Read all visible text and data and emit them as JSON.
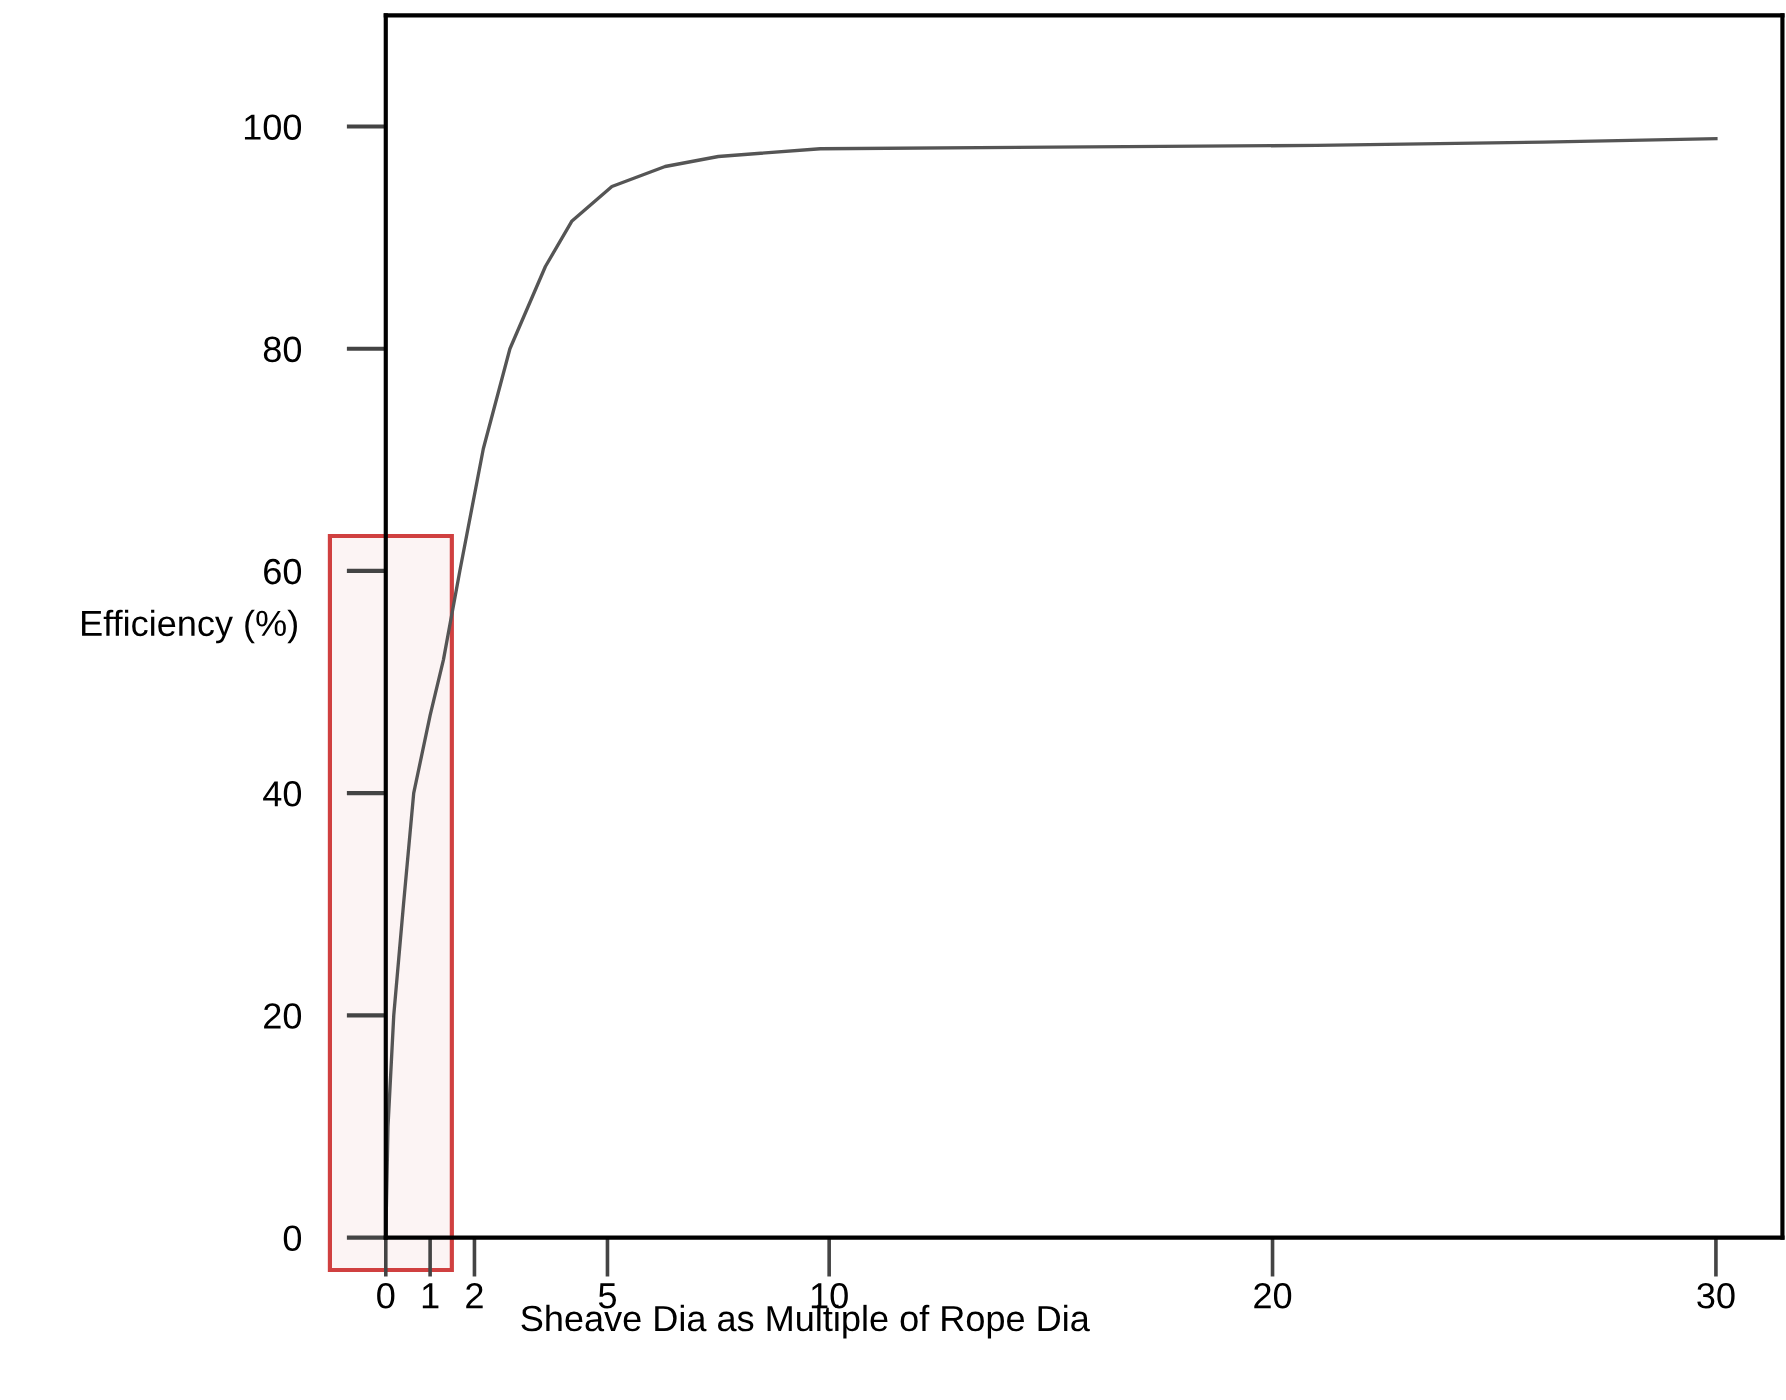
{
  "chart_data": {
    "type": "line",
    "xlabel": "Sheave Dia as Multiple of Rope Dia",
    "ylabel": "Efficiency (%)",
    "xlim": [
      0,
      31.5
    ],
    "ylim": [
      0,
      110
    ],
    "xticks": [
      0,
      1,
      2,
      5,
      10,
      20,
      30
    ],
    "yticks": [
      0,
      20,
      40,
      60,
      80,
      100
    ],
    "series": [
      {
        "color": "#555555",
        "x": [
          0,
          0.05,
          0.18,
          0.4,
          0.63,
          1.0,
          1.3,
          1.67,
          2.2,
          2.8,
          3.6,
          4.2,
          5.1,
          6.3,
          7.5,
          9.8,
          21,
          26.1,
          30
        ],
        "values": [
          0,
          10,
          20,
          30,
          40,
          47,
          52,
          60,
          71,
          80,
          87.4,
          91.5,
          94.6,
          96.4,
          97.3,
          98,
          98.3,
          98.6,
          98.9
        ]
      }
    ],
    "bands": [
      {
        "axis": "x",
        "from": -1.26,
        "to": 1.49,
        "color": "#d04040"
      }
    ]
  }
}
